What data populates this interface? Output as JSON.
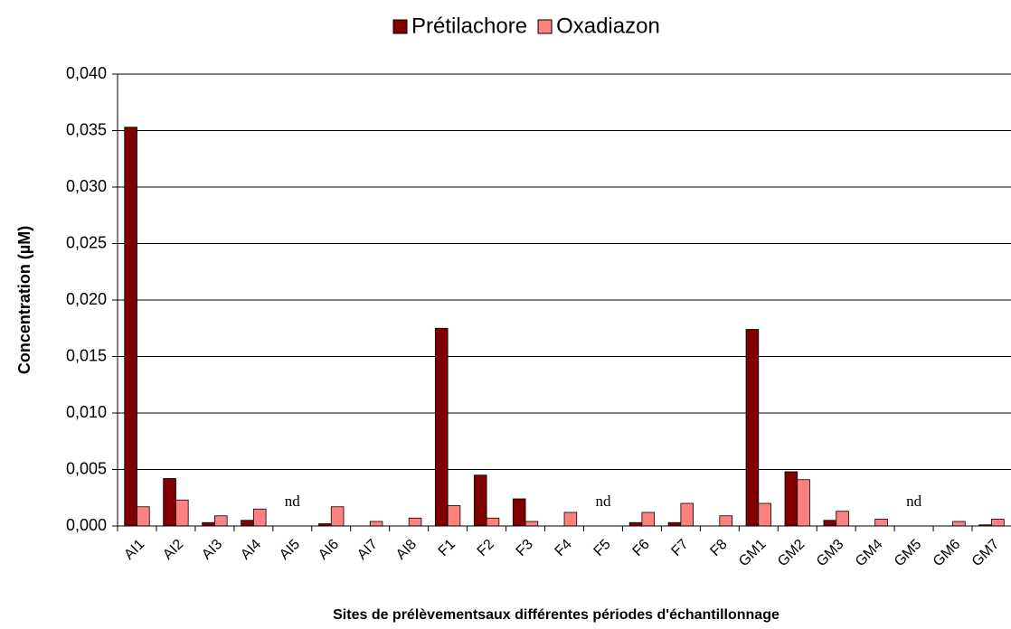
{
  "chart_data": {
    "type": "bar",
    "xlabel": "Sites de prélèvementsaux différentes périodes d'échantillonnage",
    "ylabel": "Concentration (µM)",
    "categories": [
      "AI1",
      "AI2",
      "AI3",
      "AI4",
      "AI5",
      "AI6",
      "AI7",
      "AI8",
      "F1",
      "F2",
      "F3",
      "F4",
      "F5",
      "F6",
      "F7",
      "F8",
      "GM1",
      "GM2",
      "GM3",
      "GM4",
      "GM5",
      "GM6",
      "GM7"
    ],
    "series": [
      {
        "name": "Prétilachore",
        "color": "#800000",
        "values": [
          0.0353,
          0.0042,
          0.0003,
          0.0005,
          null,
          0.0002,
          null,
          null,
          0.0175,
          0.0045,
          0.0024,
          null,
          null,
          0.0003,
          0.0003,
          null,
          0.0174,
          0.0048,
          0.0005,
          null,
          null,
          null,
          0.0001
        ]
      },
      {
        "name": "Oxadiazon",
        "color": "#ff8080",
        "values": [
          0.0017,
          0.0023,
          0.0009,
          0.0015,
          null,
          0.0017,
          0.0004,
          0.0007,
          0.0018,
          0.0007,
          0.0004,
          0.0012,
          null,
          0.0012,
          0.002,
          0.0009,
          0.002,
          0.0041,
          0.0013,
          0.0006,
          null,
          0.0004,
          0.0006
        ]
      }
    ],
    "annotations": [
      {
        "category": "AI5",
        "text": "nd"
      },
      {
        "category": "F5",
        "text": "nd"
      },
      {
        "category": "GM5",
        "text": "nd"
      }
    ],
    "ylim": [
      0,
      0.04
    ],
    "yticks": [
      {
        "value": 0,
        "label": "0,000"
      },
      {
        "value": 0.005,
        "label": "0,005"
      },
      {
        "value": 0.01,
        "label": "0,010"
      },
      {
        "value": 0.015,
        "label": "0,015"
      },
      {
        "value": 0.02,
        "label": "0,020"
      },
      {
        "value": 0.025,
        "label": "0,025"
      },
      {
        "value": 0.03,
        "label": "0,030"
      },
      {
        "value": 0.035,
        "label": "0,035"
      },
      {
        "value": 0.04,
        "label": "0,040"
      }
    ],
    "grid": true,
    "legend": "top"
  }
}
